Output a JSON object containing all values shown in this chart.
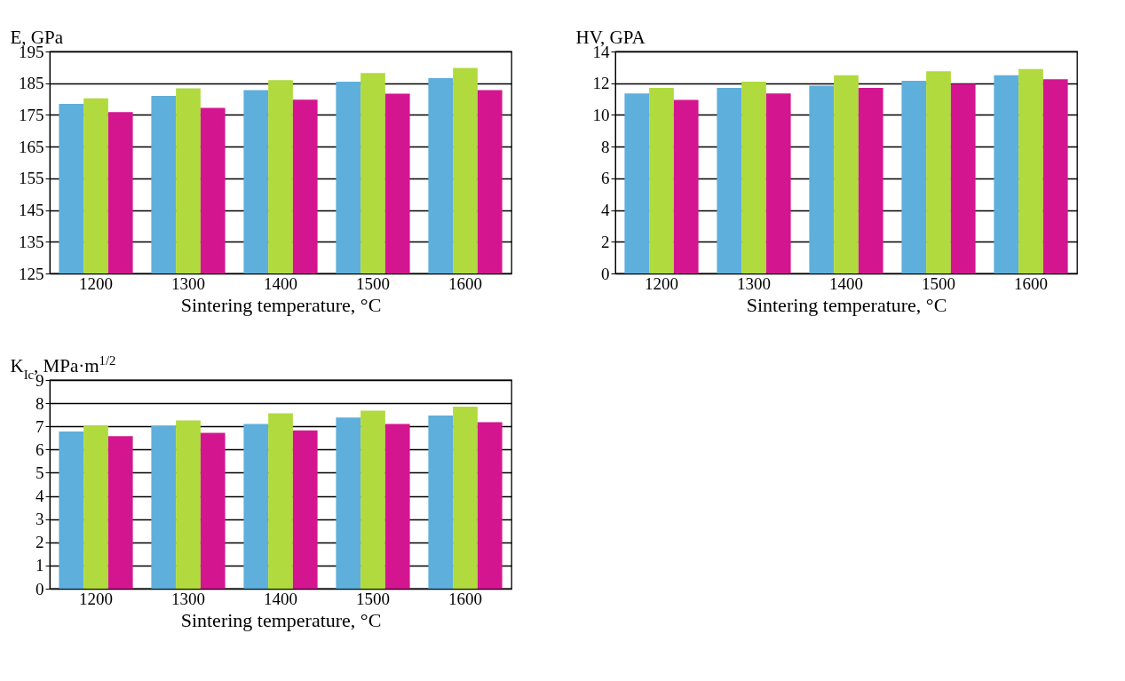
{
  "chart_data": [
    {
      "type": "bar",
      "ylabel": "E, GPa",
      "xlabel": "Sintering temperature, °C",
      "categories": [
        "1200",
        "1300",
        "1400",
        "1500",
        "1600"
      ],
      "series": [
        {
          "color": "#5eafdb",
          "values": [
            178.5,
            181.0,
            182.8,
            185.5,
            186.6
          ]
        },
        {
          "color": "#b0da3e",
          "values": [
            180.2,
            183.4,
            186.0,
            188.2,
            189.8
          ]
        },
        {
          "color": "#d3168f",
          "values": [
            175.9,
            177.2,
            179.8,
            181.7,
            182.8
          ]
        }
      ],
      "ylim": [
        125,
        195
      ],
      "yticks": [
        125,
        135,
        145,
        155,
        165,
        175,
        185,
        195
      ],
      "grid": "y"
    },
    {
      "type": "bar",
      "ylabel": "HV, GPA",
      "xlabel": "Sintering temperature, °C",
      "categories": [
        "1200",
        "1300",
        "1400",
        "1500",
        "1600"
      ],
      "series": [
        {
          "color": "#5eafdb",
          "values": [
            11.35,
            11.7,
            11.85,
            12.15,
            12.5
          ]
        },
        {
          "color": "#b0da3e",
          "values": [
            11.7,
            12.1,
            12.5,
            12.75,
            12.9
          ]
        },
        {
          "color": "#d3168f",
          "values": [
            10.95,
            11.35,
            11.7,
            11.95,
            12.25
          ]
        }
      ],
      "ylim": [
        0,
        14
      ],
      "yticks": [
        0,
        2,
        4,
        6,
        8,
        10,
        12,
        14
      ],
      "grid": "y"
    },
    {
      "type": "bar",
      "ylabel": "K$_{Ic}$, MPa·m$^{1/2}$",
      "xlabel": "Sintering temperature, °C",
      "categories": [
        "1200",
        "1300",
        "1400",
        "1500",
        "1600"
      ],
      "series": [
        {
          "color": "#5eafdb",
          "values": [
            6.78,
            7.03,
            7.1,
            7.38,
            7.47
          ]
        },
        {
          "color": "#b0da3e",
          "values": [
            7.03,
            7.26,
            7.56,
            7.68,
            7.85
          ]
        },
        {
          "color": "#d3168f",
          "values": [
            6.58,
            6.72,
            6.83,
            7.1,
            7.18
          ]
        }
      ],
      "ylim": [
        0,
        9
      ],
      "yticks": [
        0,
        1,
        2,
        3,
        4,
        5,
        6,
        7,
        8,
        9
      ],
      "grid": "y"
    }
  ]
}
